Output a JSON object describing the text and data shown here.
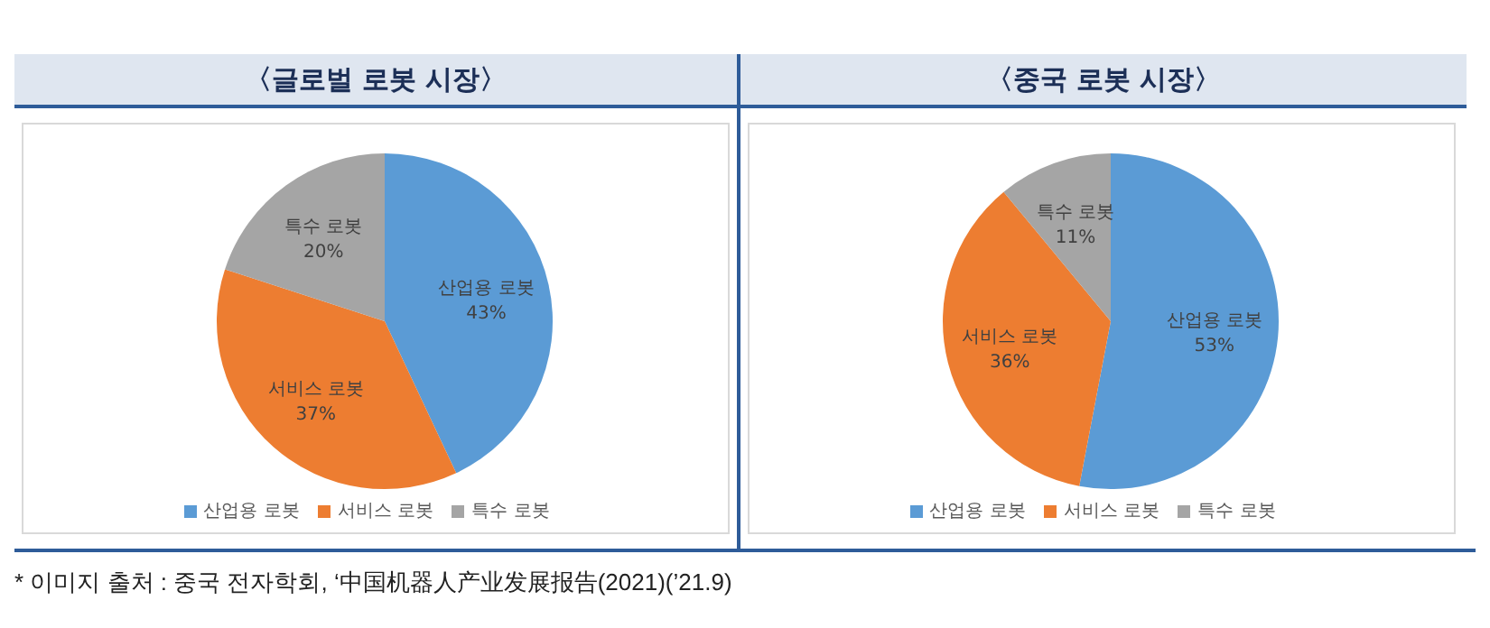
{
  "chart_data": [
    {
      "type": "pie",
      "title": "〈글로벌 로봇 시장〉",
      "categories": [
        "산업용 로봇",
        "서비스 로봇",
        "특수 로봇"
      ],
      "values": [
        43,
        37,
        20
      ],
      "value_labels": [
        "43%",
        "37%",
        "20%"
      ],
      "colors": [
        "#5b9bd5",
        "#ed7d31",
        "#a5a5a5"
      ],
      "legend": "bottom",
      "annotations": [
        "* 이미지 출처 : 중국 전자학회, ‘中国机器人产业发展报告(2021)(’21.9)"
      ]
    },
    {
      "type": "pie",
      "title": "〈중국 로봇 시장〉",
      "categories": [
        "산업용 로봇",
        "서비스 로봇",
        "특수 로봇"
      ],
      "values": [
        53,
        36,
        11
      ],
      "value_labels": [
        "53%",
        "36%",
        "11%"
      ],
      "colors": [
        "#5b9bd5",
        "#ed7d31",
        "#a5a5a5"
      ],
      "legend": "bottom"
    }
  ]
}
